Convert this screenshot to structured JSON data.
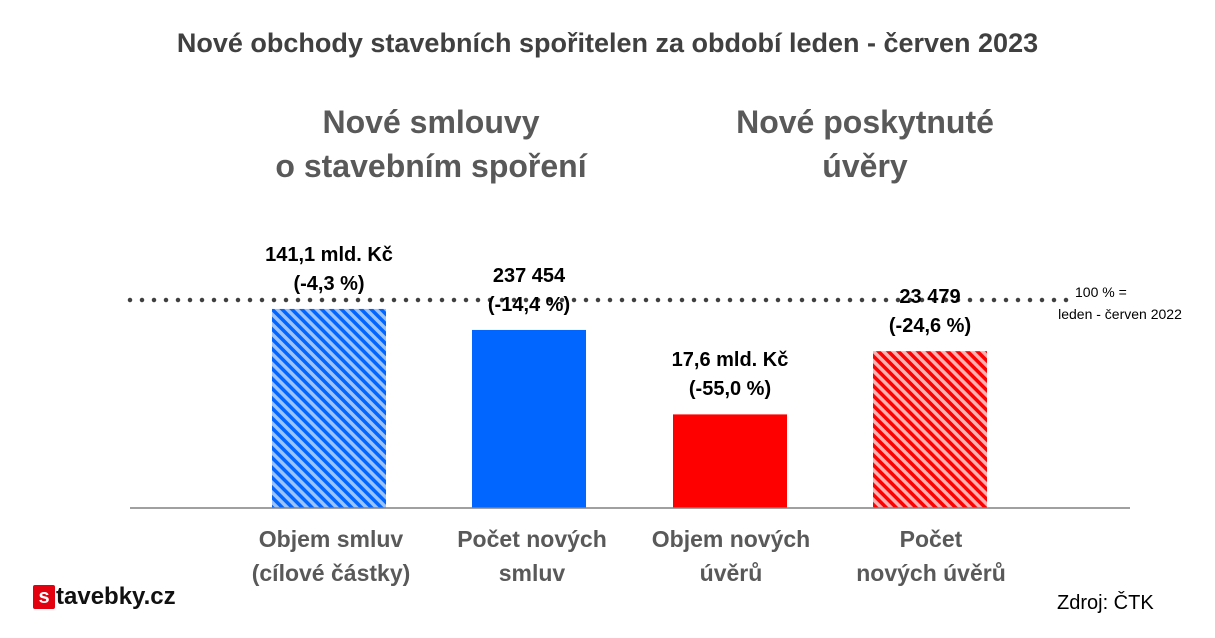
{
  "chart_data": {
    "type": "bar",
    "title": "Nové obchody stavebních spořitelen za období leden - červen 2023",
    "groups": [
      {
        "title_lines": [
          "Nové smlouvy",
          "o stavebním spoření"
        ]
      },
      {
        "title_lines": [
          "Nové poskytnuté",
          "úvěry"
        ]
      }
    ],
    "categories": [
      [
        "Objem smluv",
        "(cílové částky)"
      ],
      [
        "Počet  nových",
        "smluv"
      ],
      [
        "Objem nových",
        "úvěrů"
      ],
      [
        "Počet",
        "nových úvěrů"
      ]
    ],
    "values_percent_of_2022": [
      95.7,
      85.6,
      45.0,
      75.4
    ],
    "value_labels": [
      [
        "141,1 mld. Kč",
        "(-4,3 %)"
      ],
      [
        "237 454",
        "(-14,4 %)"
      ],
      [
        "17,6 mld. Kč",
        "(-55,0 %)"
      ],
      [
        "23 479",
        "(-24,6 %)"
      ]
    ],
    "bar_styles": [
      "hatched-blue",
      "solid-blue",
      "solid-red",
      "hatched-red"
    ],
    "colors": {
      "blue": "#0066ff",
      "red": "#ff0000",
      "hatch_blue_bg": "#9cc3ff",
      "hatch_red_bg": "#ffb0b0",
      "axis": "#808080",
      "reference": "#404040"
    },
    "reference_line": {
      "value": 100,
      "label_lines": [
        "100 % =",
        "leden - červen 2022"
      ]
    },
    "ylim": [
      0,
      100
    ]
  },
  "source": "Zdroj: ČTK",
  "logo": {
    "badge": "s",
    "text": "tavebky.cz"
  }
}
